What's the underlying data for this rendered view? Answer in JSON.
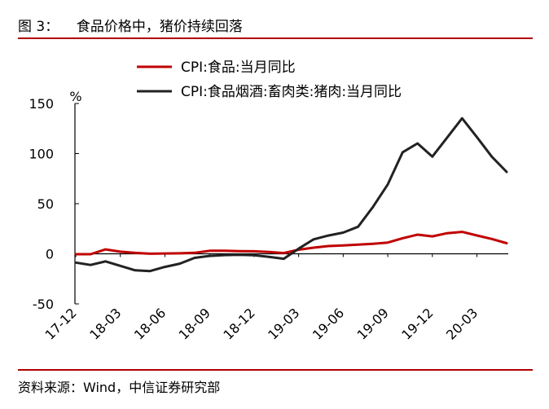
{
  "header": {
    "title": "图 3：    食品价格中，猪价持续回落"
  },
  "footer": {
    "source": "资料来源：Wind，中信证券研究部"
  },
  "chart_data": {
    "type": "line",
    "unit_label": "%",
    "ylim": [
      -50,
      150
    ],
    "yticks": [
      -50,
      0,
      50,
      100,
      150
    ],
    "grid": false,
    "legend_position": "top",
    "categories": [
      "17-12",
      "18-01",
      "18-02",
      "18-03",
      "18-04",
      "18-05",
      "18-06",
      "18-07",
      "18-08",
      "18-09",
      "18-10",
      "18-11",
      "18-12",
      "19-01",
      "19-02",
      "19-03",
      "19-04",
      "19-05",
      "19-06",
      "19-07",
      "19-08",
      "19-09",
      "19-10",
      "19-11",
      "19-12",
      "20-01",
      "20-02",
      "20-03",
      "20-04",
      "20-05"
    ],
    "x_tick_labels": [
      "17-12",
      "18-03",
      "18-06",
      "18-09",
      "18-12",
      "19-03",
      "19-06",
      "19-09",
      "19-12",
      "20-03"
    ],
    "series": [
      {
        "name": "CPI:食品:当月同比",
        "color": "#c00000",
        "values": [
          -0.4,
          -0.4,
          4.4,
          2.1,
          0.9,
          0.1,
          0.3,
          0.5,
          1.0,
          3.0,
          3.0,
          2.7,
          2.5,
          1.9,
          0.7,
          4.1,
          6.1,
          7.7,
          8.3,
          9.1,
          10.0,
          11.2,
          15.5,
          19.1,
          17.4,
          20.6,
          21.9,
          18.3,
          14.8,
          10.6
        ]
      },
      {
        "name": "CPI:食品烟酒:畜肉类:猪肉:当月同比",
        "color": "#222222",
        "values": [
          -8.8,
          -11.1,
          -7.6,
          -12.0,
          -16.5,
          -17.2,
          -13.1,
          -9.8,
          -4.1,
          -2.1,
          -1.3,
          -1.0,
          -1.4,
          -3.1,
          -5.0,
          5.1,
          14.4,
          18.2,
          21.1,
          27.0,
          46.7,
          69.3,
          101.3,
          110.2,
          97.0,
          116.0,
          135.2,
          116.4,
          96.9,
          81.7
        ]
      }
    ]
  }
}
